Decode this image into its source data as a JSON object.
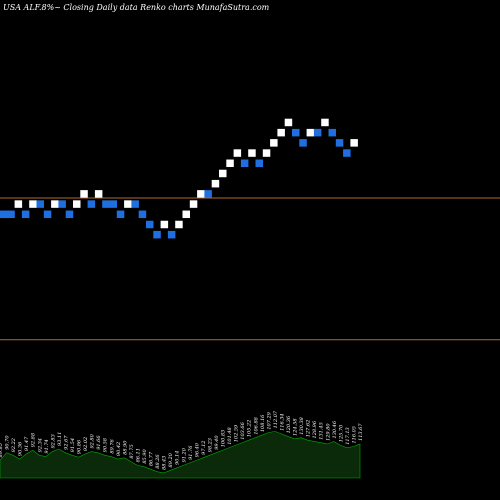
{
  "header": {
    "title": "USA ALF.8%~  Closing Daily data  Renko  charts MunafaSutra.com"
  },
  "colors": {
    "background": "#000000",
    "up_brick": "#ffffff",
    "down_brick": "#1f6fe0",
    "level_line": "#b06a2a",
    "volume_fill": "#0a2a0a",
    "volume_stroke": "#00aa00"
  },
  "chart_data": [
    {
      "type": "renko",
      "ylim": [
        0,
        49
      ],
      "grid": false,
      "legend": "none",
      "reference_levels": [
        15.7,
        29.6
      ],
      "bricks": [
        {
          "level": 28,
          "dir": "down"
        },
        {
          "level": 28,
          "dir": "down"
        },
        {
          "level": 29,
          "dir": "up"
        },
        {
          "level": 28,
          "dir": "down"
        },
        {
          "level": 29,
          "dir": "up"
        },
        {
          "level": 29,
          "dir": "down"
        },
        {
          "level": 28,
          "dir": "down"
        },
        {
          "level": 29,
          "dir": "up"
        },
        {
          "level": 29,
          "dir": "down"
        },
        {
          "level": 28,
          "dir": "down"
        },
        {
          "level": 29,
          "dir": "up"
        },
        {
          "level": 30,
          "dir": "up"
        },
        {
          "level": 29,
          "dir": "down"
        },
        {
          "level": 30,
          "dir": "up"
        },
        {
          "level": 29,
          "dir": "down"
        },
        {
          "level": 29,
          "dir": "down"
        },
        {
          "level": 28,
          "dir": "down"
        },
        {
          "level": 29,
          "dir": "up"
        },
        {
          "level": 29,
          "dir": "down"
        },
        {
          "level": 28,
          "dir": "down"
        },
        {
          "level": 27,
          "dir": "down"
        },
        {
          "level": 26,
          "dir": "down"
        },
        {
          "level": 27,
          "dir": "up"
        },
        {
          "level": 26,
          "dir": "down"
        },
        {
          "level": 27,
          "dir": "up"
        },
        {
          "level": 28,
          "dir": "up"
        },
        {
          "level": 29,
          "dir": "up"
        },
        {
          "level": 30,
          "dir": "up"
        },
        {
          "level": 30,
          "dir": "down"
        },
        {
          "level": 31,
          "dir": "up"
        },
        {
          "level": 32,
          "dir": "up"
        },
        {
          "level": 33,
          "dir": "up"
        },
        {
          "level": 34,
          "dir": "up"
        },
        {
          "level": 33,
          "dir": "down"
        },
        {
          "level": 34,
          "dir": "up"
        },
        {
          "level": 33,
          "dir": "down"
        },
        {
          "level": 34,
          "dir": "up"
        },
        {
          "level": 35,
          "dir": "up"
        },
        {
          "level": 36,
          "dir": "up"
        },
        {
          "level": 37,
          "dir": "up"
        },
        {
          "level": 36,
          "dir": "down"
        },
        {
          "level": 35,
          "dir": "down"
        },
        {
          "level": 36,
          "dir": "up"
        },
        {
          "level": 36,
          "dir": "down"
        },
        {
          "level": 37,
          "dir": "up"
        },
        {
          "level": 36,
          "dir": "down"
        },
        {
          "level": 35,
          "dir": "down"
        },
        {
          "level": 34,
          "dir": "down"
        },
        {
          "level": 35,
          "dir": "up"
        }
      ]
    },
    {
      "type": "area",
      "ylim": [
        0,
        100
      ],
      "grid": false,
      "legend": "none",
      "values": [
        28,
        40,
        36,
        30,
        38,
        44,
        36,
        34,
        42,
        46,
        40,
        36,
        33,
        38,
        42,
        40,
        36,
        34,
        30,
        32,
        26,
        20,
        18,
        14,
        10,
        8,
        12,
        16,
        20,
        24,
        28,
        32,
        36,
        40,
        44,
        48,
        52,
        56,
        60,
        64,
        68,
        72,
        74,
        70,
        66,
        62,
        64,
        60,
        58,
        56,
        54,
        58,
        52,
        48,
        50,
        54
      ],
      "labels": [
        "89.85",
        "90.70",
        "92.22",
        "90.36",
        "91.47",
        "92.88",
        "92.34",
        "91.74",
        "92.83",
        "93.11",
        "92.67",
        "91.54",
        "90.86",
        "92.02",
        "92.80",
        "91.66",
        "90.58",
        "89.76",
        "90.42",
        "88.90",
        "87.75",
        "86.11",
        "85.90",
        "86.77",
        "88.26",
        "88.43",
        "89.20",
        "90.14",
        "91.20",
        "91.76",
        "96.40",
        "97.12",
        "98.23",
        "99.40",
        "100.83",
        "101.48",
        "102.59",
        "103.66",
        "105.22",
        "106.88",
        "108.16",
        "107.29",
        "112.07",
        "116.34",
        "120.36",
        "124.58",
        "130.38",
        "127.62",
        "128.96",
        "131.45",
        "129.80",
        "130.46",
        "125.70",
        "117.13",
        "116.05",
        "113.67"
      ]
    }
  ]
}
